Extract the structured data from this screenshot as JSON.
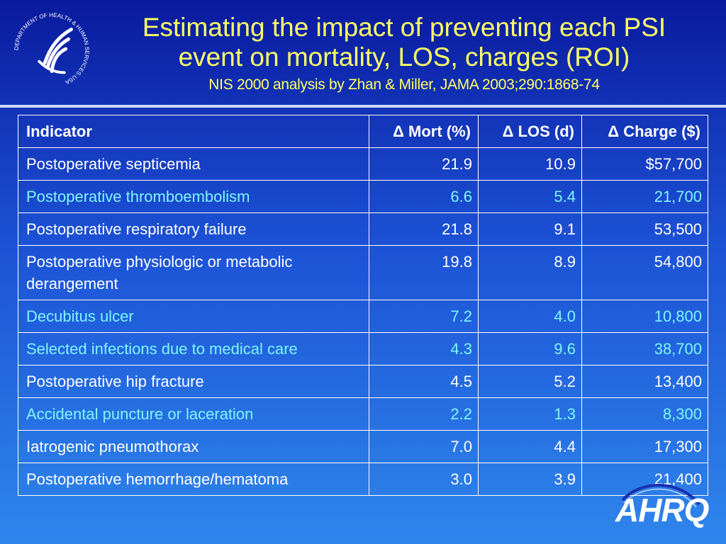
{
  "slide": {
    "title_line1": "Estimating the impact of preventing each PSI",
    "title_line2": "event on mortality, LOS, charges (ROI)",
    "subtitle": "NIS 2000 analysis by Zhan & Miller, JAMA 2003;290:1868-74"
  },
  "seal": {
    "icon": "hhs-eagle-seal-icon",
    "text": "DEPARTMENT OF HEALTH & HUMAN SERVICES·USA"
  },
  "logo": {
    "text": "AHRQ",
    "icon": "ahrq-logo-icon"
  },
  "colors": {
    "title": "#ffff66",
    "highlight_row": "#7ff7ff",
    "text": "#ffffff",
    "background_top": "#0a1a9e",
    "background_bottom": "#2f86ec"
  },
  "table": {
    "headers": [
      "Indicator",
      "Δ Mort (%)",
      "Δ LOS (d)",
      "Δ Charge ($)"
    ],
    "rows": [
      {
        "indicator": "Postoperative septicemia",
        "mort": "21.9",
        "los": "10.9",
        "charge": "$57,700",
        "highlight": false
      },
      {
        "indicator": "Postoperative thromboembolism",
        "mort": "6.6",
        "los": "5.4",
        "charge": "21,700",
        "highlight": true
      },
      {
        "indicator": "Postoperative respiratory failure",
        "mort": "21.8",
        "los": "9.1",
        "charge": "53,500",
        "highlight": false
      },
      {
        "indicator": "Postoperative physiologic or metabolic derangement",
        "mort": "19.8",
        "los": "8.9",
        "charge": "54,800",
        "highlight": false
      },
      {
        "indicator": "Decubitus ulcer",
        "mort": "7.2",
        "los": "4.0",
        "charge": "10,800",
        "highlight": true
      },
      {
        "indicator": "Selected infections due to medical care",
        "mort": "4.3",
        "los": "9.6",
        "charge": "38,700",
        "highlight": true
      },
      {
        "indicator": "Postoperative hip fracture",
        "mort": "4.5",
        "los": "5.2",
        "charge": "13,400",
        "highlight": false
      },
      {
        "indicator": "Accidental puncture or laceration",
        "mort": "2.2",
        "los": "1.3",
        "charge": "8,300",
        "highlight": true
      },
      {
        "indicator": "Iatrogenic pneumothorax",
        "mort": "7.0",
        "los": "4.4",
        "charge": "17,300",
        "highlight": false
      },
      {
        "indicator": "Postoperative hemorrhage/hematoma",
        "mort": "3.0",
        "los": "3.9",
        "charge": "21,400",
        "highlight": false
      }
    ]
  }
}
